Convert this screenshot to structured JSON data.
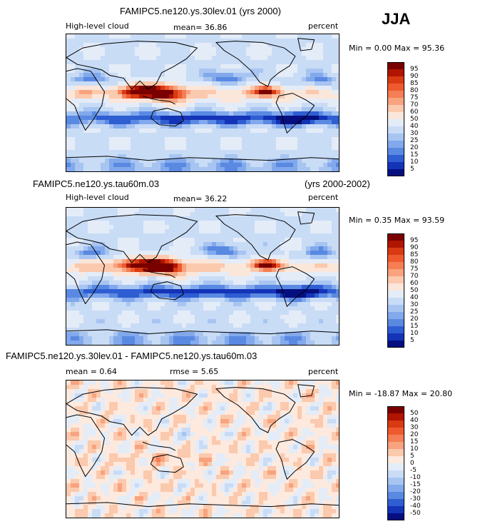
{
  "season": "JJA",
  "panels": [
    {
      "title": "FAMIPC5.ne120.ys.30lev.01 (yrs 2000)",
      "left_label": "High-level cloud",
      "center_label": "mean=  36.86",
      "right_label": "percent",
      "minmax": "Min =   0.00 Max =  95.36",
      "min": 0.0,
      "max": 95.36,
      "mode": "abs",
      "seed": 11,
      "colorbar": {
        "levels": [
          "95",
          "90",
          "85",
          "80",
          "75",
          "70",
          "60",
          "50",
          "40",
          "30",
          "25",
          "20",
          "15",
          "10",
          "5"
        ],
        "colors": [
          "#7a0000",
          "#b01500",
          "#d93a12",
          "#ee5a2e",
          "#f57e55",
          "#f8a37e",
          "#fbc9ad",
          "#fbe6da",
          "#e4ecf8",
          "#c9dcf6",
          "#a8c5f2",
          "#82a9ec",
          "#5a89e2",
          "#2f5ed2",
          "#1434b8",
          "#050f80"
        ]
      }
    },
    {
      "title": "FAMIPC5.ne120.ys.tau60m.03",
      "title_right": "(yrs 2000-2002)",
      "left_label": "High-level cloud",
      "center_label": "mean=  36.22",
      "right_label": "percent",
      "minmax": "Min =   0.35 Max =  93.59",
      "min": 0.35,
      "max": 93.59,
      "mode": "abs",
      "seed": 29,
      "colorbar": {
        "levels": [
          "95",
          "90",
          "85",
          "80",
          "75",
          "70",
          "60",
          "50",
          "40",
          "30",
          "25",
          "20",
          "15",
          "10",
          "5"
        ],
        "colors": [
          "#7a0000",
          "#b01500",
          "#d93a12",
          "#ee5a2e",
          "#f57e55",
          "#f8a37e",
          "#fbc9ad",
          "#fbe6da",
          "#e4ecf8",
          "#c9dcf6",
          "#a8c5f2",
          "#82a9ec",
          "#5a89e2",
          "#2f5ed2",
          "#1434b8",
          "#050f80"
        ]
      }
    },
    {
      "title": "FAMIPC5.ne120.ys.30lev.01 - FAMIPC5.ne120.ys.tau60m.03",
      "left_label": "mean =    0.64",
      "center_label": "rmse =    5.65",
      "right_label": "percent",
      "minmax": "Min = -18.87 Max =  20.80",
      "min": -18.87,
      "max": 20.8,
      "mode": "diff",
      "seed": 47,
      "colorbar": {
        "levels": [
          "50",
          "40",
          "30",
          "20",
          "15",
          "10",
          "5",
          "0",
          "-5",
          "-10",
          "-15",
          "-20",
          "-30",
          "-40",
          "-50"
        ],
        "colors": [
          "#7a0000",
          "#b01500",
          "#d93a12",
          "#ee5a2e",
          "#f57e55",
          "#f8a37e",
          "#fbc9ad",
          "#fde9de",
          "#e4ecf8",
          "#c9dcf6",
          "#a8c5f2",
          "#82a9ec",
          "#5a89e2",
          "#2f5ed2",
          "#1434b8",
          "#050f80"
        ]
      }
    }
  ],
  "chart_data": [
    {
      "type": "heatmap",
      "title": "FAMIPC5.ne120.ys.30lev.01 (yrs 2000)",
      "variable": "High-level cloud",
      "units": "percent",
      "mean": 36.86,
      "min": 0.0,
      "max": 95.36,
      "contour_levels": [
        5,
        10,
        15,
        20,
        25,
        30,
        40,
        50,
        60,
        70,
        75,
        80,
        85,
        90,
        95
      ]
    },
    {
      "type": "heatmap",
      "title": "FAMIPC5.ne120.ys.tau60m.03 (yrs 2000-2002)",
      "variable": "High-level cloud",
      "units": "percent",
      "mean": 36.22,
      "min": 0.35,
      "max": 93.59,
      "contour_levels": [
        5,
        10,
        15,
        20,
        25,
        30,
        40,
        50,
        60,
        70,
        75,
        80,
        85,
        90,
        95
      ]
    },
    {
      "type": "heatmap",
      "title": "FAMIPC5.ne120.ys.30lev.01 - FAMIPC5.ne120.ys.tau60m.03",
      "units": "percent",
      "mean": 0.64,
      "rmse": 5.65,
      "min": -18.87,
      "max": 20.8,
      "contour_levels": [
        -50,
        -40,
        -30,
        -20,
        -15,
        -10,
        -5,
        0,
        5,
        10,
        15,
        20,
        30,
        40,
        50
      ]
    }
  ]
}
